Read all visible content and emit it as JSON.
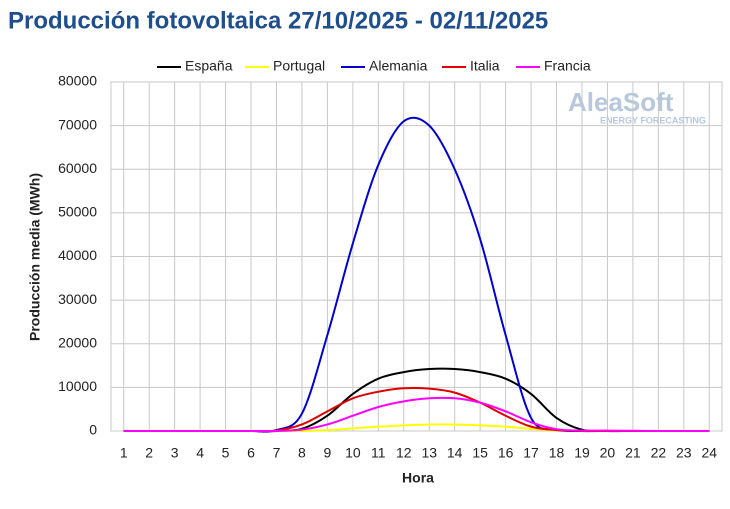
{
  "chart_data": {
    "type": "line",
    "title": "Producción fotovoltaica 27/10/2025 - 02/11/2025",
    "watermark": {
      "brand": "AleaSoft",
      "tagline": "ENERGY FORECASTING"
    },
    "x_label": "Hora",
    "y_label": "Producción media (MWh)",
    "x": [
      1,
      2,
      3,
      4,
      5,
      6,
      7,
      8,
      9,
      10,
      11,
      12,
      13,
      14,
      15,
      16,
      17,
      18,
      19,
      20,
      21,
      22,
      23,
      24
    ],
    "xlim": [
      0.5,
      24.5
    ],
    "xticks": [
      1,
      2,
      3,
      4,
      5,
      6,
      7,
      8,
      9,
      10,
      11,
      12,
      13,
      14,
      15,
      16,
      17,
      18,
      19,
      20,
      21,
      22,
      23,
      24
    ],
    "ylim": [
      0,
      80000
    ],
    "yticks": [
      0,
      10000,
      20000,
      30000,
      40000,
      50000,
      60000,
      70000,
      80000
    ],
    "grid": true,
    "legend": "top",
    "series": [
      {
        "name": "España",
        "color": "#000000",
        "values": [
          0,
          0,
          0,
          0,
          0,
          0,
          0,
          500,
          3500,
          8500,
          12000,
          13500,
          14200,
          14200,
          13500,
          12000,
          8500,
          3000,
          300,
          0,
          0,
          0,
          0,
          0
        ]
      },
      {
        "name": "Portugal",
        "color": "#ffff00",
        "values": [
          0,
          0,
          0,
          0,
          0,
          0,
          0,
          0,
          200,
          600,
          1000,
          1300,
          1500,
          1500,
          1300,
          1000,
          500,
          100,
          0,
          0,
          0,
          0,
          0,
          0
        ]
      },
      {
        "name": "Alemania",
        "color": "#0000cc",
        "values": [
          0,
          0,
          0,
          0,
          0,
          0,
          200,
          4000,
          22000,
          43000,
          61000,
          71000,
          70000,
          60000,
          44000,
          22000,
          3000,
          300,
          0,
          0,
          0,
          0,
          0,
          0
        ]
      },
      {
        "name": "Italia",
        "color": "#e00000",
        "values": [
          0,
          0,
          0,
          0,
          0,
          0,
          100,
          1500,
          4500,
          7500,
          9000,
          9800,
          9700,
          8800,
          6500,
          3500,
          1000,
          200,
          0,
          0,
          0,
          0,
          0,
          0
        ]
      },
      {
        "name": "Francia",
        "color": "#ff00ff",
        "values": [
          0,
          0,
          0,
          0,
          0,
          0,
          0,
          300,
          1500,
          3500,
          5500,
          6800,
          7500,
          7500,
          6500,
          4500,
          2000,
          400,
          100,
          100,
          50,
          0,
          0,
          0
        ]
      }
    ]
  }
}
